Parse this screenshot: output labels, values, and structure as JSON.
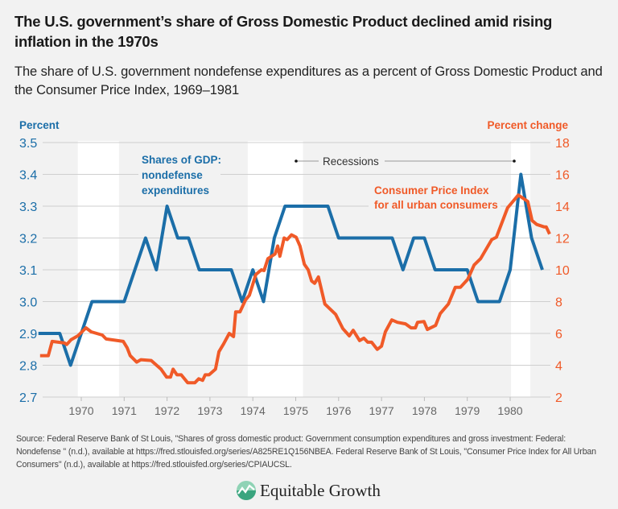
{
  "title": "The U.S. government’s share of Gross Domestic Product declined amid rising inflation in the 1970s",
  "subtitle": "The share of U.S. government nondefense expenditures as a percent of Gross Domestic Product and the Consumer Price Index, 1969–1981",
  "source": "Source: Federal Reserve Bank of St Louis, \"Shares of gross domestic product: Government consumption expenditures and gross investment: Federal: Nondefense \" (n.d.), available at https://fred.stlouisfed.org/series/A825RE1Q156NBEA. Federal Reserve Bank of St Louis, \"Consumer Price Index for All Urban Consumers\" (n.d.), available at https://fred.stlouisfed.org/series/CPIAUCSL.",
  "logo": {
    "text": "Equitable Growth",
    "colors": [
      "#3aa57f",
      "#8fd3b5"
    ]
  },
  "chart_data": {
    "type": "line",
    "title": "The U.S. government’s share of Gross Domestic Product declined amid rising inflation in the 1970s",
    "y_left": {
      "label": "Percent",
      "range": [
        2.7,
        3.5
      ],
      "ticks": [
        "3.5",
        "3.4",
        "3.3",
        "3.2",
        "3.1",
        "3.0",
        "2.9",
        "2.8",
        "2.7"
      ],
      "color": "#1b6ea8"
    },
    "y_right": {
      "label": "Percent change",
      "range": [
        2,
        18
      ],
      "ticks": [
        "18",
        "16",
        "14",
        "12",
        "10",
        "8",
        "6",
        "4",
        "2"
      ],
      "color": "#f05a28"
    },
    "x": {
      "range": [
        1969,
        1980.95
      ],
      "ticks": [
        "1970",
        "1971",
        "1972",
        "1973",
        "1974",
        "1975",
        "1976",
        "1977",
        "1978",
        "1979",
        "1980"
      ]
    },
    "grid": true,
    "recessions": {
      "label": "Recessions",
      "periods": [
        [
          1969.92,
          1970.88
        ],
        [
          1973.88,
          1975.17
        ],
        [
          1980.02,
          1980.47
        ]
      ]
    },
    "series": [
      {
        "name": "Shares of GDP: nondefense expenditures",
        "label_lines": [
          "Shares of GDP:",
          "nondefense",
          "expenditures"
        ],
        "axis": "left",
        "color": "#1b6ea8",
        "x": [
          1969.0,
          1969.25,
          1969.5,
          1969.75,
          1970.0,
          1970.25,
          1970.5,
          1970.75,
          1971.0,
          1971.25,
          1971.5,
          1971.75,
          1972.0,
          1972.25,
          1972.5,
          1972.75,
          1973.0,
          1973.25,
          1973.5,
          1973.75,
          1974.0,
          1974.25,
          1974.5,
          1974.75,
          1975.0,
          1975.25,
          1975.5,
          1975.75,
          1976.0,
          1976.25,
          1976.5,
          1976.75,
          1977.0,
          1977.25,
          1977.5,
          1977.75,
          1978.0,
          1978.25,
          1978.5,
          1978.75,
          1979.0,
          1979.25,
          1979.5,
          1979.75,
          1980.0,
          1980.25,
          1980.5,
          1980.75
        ],
        "y": [
          2.9,
          2.9,
          2.9,
          2.8,
          2.9,
          3.0,
          3.0,
          3.0,
          3.0,
          3.1,
          3.2,
          3.1,
          3.3,
          3.2,
          3.2,
          3.1,
          3.1,
          3.1,
          3.1,
          3.0,
          3.1,
          3.0,
          3.2,
          3.3,
          3.3,
          3.3,
          3.3,
          3.3,
          3.2,
          3.2,
          3.2,
          3.2,
          3.2,
          3.2,
          3.1,
          3.2,
          3.2,
          3.1,
          3.1,
          3.1,
          3.1,
          3.0,
          3.0,
          3.0,
          3.1,
          3.4,
          3.2,
          3.1
        ]
      },
      {
        "name": "Consumer Price Index for all urban consumers",
        "label_lines": [
          "Consumer Price Index",
          "for all urban consumers"
        ],
        "axis": "right",
        "color": "#f05a28",
        "x": [
          1969.04,
          1969.23,
          1969.32,
          1969.61,
          1969.66,
          1969.76,
          1969.92,
          1970.11,
          1970.23,
          1970.49,
          1970.58,
          1970.98,
          1971.07,
          1971.14,
          1971.29,
          1971.39,
          1971.63,
          1971.86,
          1971.99,
          1972.08,
          1972.14,
          1972.23,
          1972.33,
          1972.48,
          1972.65,
          1972.74,
          1972.83,
          1972.89,
          1972.98,
          1973.13,
          1973.21,
          1973.32,
          1973.45,
          1973.55,
          1973.6,
          1973.7,
          1973.83,
          1973.92,
          1974.07,
          1974.2,
          1974.26,
          1974.35,
          1974.52,
          1974.58,
          1974.63,
          1974.73,
          1974.8,
          1974.9,
          1975.01,
          1975.1,
          1975.2,
          1975.29,
          1975.37,
          1975.44,
          1975.53,
          1975.68,
          1975.93,
          1976.1,
          1976.25,
          1976.34,
          1976.49,
          1976.59,
          1976.68,
          1976.77,
          1976.9,
          1977.0,
          1977.09,
          1977.24,
          1977.37,
          1977.56,
          1977.69,
          1977.79,
          1977.84,
          1977.99,
          1978.07,
          1978.26,
          1978.37,
          1978.56,
          1978.72,
          1978.84,
          1979.01,
          1979.16,
          1979.31,
          1979.57,
          1979.68,
          1979.94,
          1980.19,
          1980.41,
          1980.51,
          1980.62,
          1980.79,
          1980.84,
          1980.92
        ],
        "y": [
          4.6,
          4.6,
          5.5,
          5.4,
          5.3,
          5.6,
          5.85,
          6.35,
          6.1,
          5.9,
          5.65,
          5.5,
          5.1,
          4.6,
          4.2,
          4.35,
          4.3,
          3.75,
          3.25,
          3.25,
          3.75,
          3.4,
          3.4,
          2.9,
          2.9,
          3.15,
          3.05,
          3.4,
          3.4,
          3.75,
          4.85,
          5.35,
          6.0,
          5.8,
          7.35,
          7.35,
          8.1,
          8.4,
          9.7,
          10.0,
          9.95,
          10.7,
          11.0,
          11.5,
          10.85,
          12.0,
          11.9,
          12.2,
          12.05,
          11.5,
          10.35,
          10.0,
          9.3,
          9.15,
          9.55,
          7.85,
          7.2,
          6.3,
          5.85,
          6.2,
          5.55,
          5.7,
          5.45,
          5.45,
          5.0,
          5.2,
          6.1,
          6.85,
          6.7,
          6.6,
          6.35,
          6.35,
          6.7,
          6.75,
          6.25,
          6.5,
          7.25,
          7.85,
          8.9,
          8.9,
          9.4,
          10.3,
          10.7,
          11.9,
          12.05,
          13.9,
          14.7,
          14.3,
          13.1,
          12.85,
          12.7,
          12.7,
          12.25
        ]
      }
    ]
  }
}
